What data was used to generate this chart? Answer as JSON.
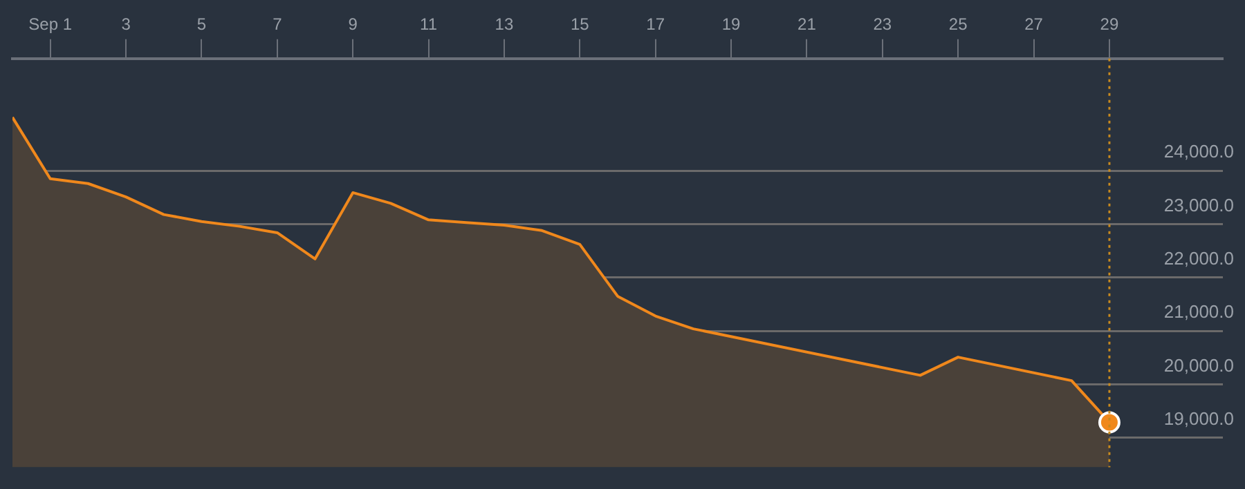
{
  "chart_data": {
    "type": "area",
    "x": [
      "--08-31",
      "--09-01",
      "--09-02",
      "--09-03",
      "--09-04",
      "--09-05",
      "--09-06",
      "--09-07",
      "--09-08",
      "--09-09",
      "--09-10",
      "--09-11",
      "--09-12",
      "--09-13",
      "--09-14",
      "--09-15",
      "--09-16",
      "--09-17",
      "--09-18",
      "--09-24",
      "--09-25",
      "--09-28",
      "--09-29"
    ],
    "series": [
      {
        "color": "#f0881c",
        "values": [
          25000,
          23850,
          23760,
          23510,
          23180,
          23050,
          22960,
          22840,
          22350,
          23590,
          23390,
          23080,
          23030,
          22980,
          22880,
          22620,
          21650,
          21280,
          21040,
          20170,
          20510,
          20070,
          19290
        ]
      },
      {
        "type": "scatter",
        "color": "#f0881c",
        "x": [
          "--09-29"
        ],
        "values": [
          19290
        ]
      }
    ],
    "xlim": [
      "--08-31",
      "--10-02"
    ],
    "xticks": [
      {
        "value": "--09-01",
        "label": "Sep 1"
      },
      {
        "value": "--09-03",
        "label": "3"
      },
      {
        "value": "--09-05",
        "label": "5"
      },
      {
        "value": "--09-07",
        "label": "7"
      },
      {
        "value": "--09-09",
        "label": "9"
      },
      {
        "value": "--09-11",
        "label": "11"
      },
      {
        "value": "--09-13",
        "label": "13"
      },
      {
        "value": "--09-15",
        "label": "15"
      },
      {
        "value": "--09-17",
        "label": "17"
      },
      {
        "value": "--09-19",
        "label": "19"
      },
      {
        "value": "--09-21",
        "label": "21"
      },
      {
        "value": "--09-23",
        "label": "23"
      },
      {
        "value": "--09-25",
        "label": "25"
      },
      {
        "value": "--09-27",
        "label": "27"
      },
      {
        "value": "--09-29",
        "label": "29"
      }
    ],
    "ylim": [
      18450,
      26100
    ],
    "yticks": [
      {
        "value": 19000,
        "label": "19,000.0"
      },
      {
        "value": 20000,
        "label": "20,000.0"
      },
      {
        "value": 21000,
        "label": "21,000.0"
      },
      {
        "value": 22000,
        "label": "22,000.0"
      },
      {
        "value": 23000,
        "label": "23,000.0"
      },
      {
        "value": 24000,
        "label": "24,000.0"
      }
    ],
    "ref_lines": [
      {
        "axis": "x",
        "value": "--09-29",
        "color": "#c98a1e",
        "line_style": "dotted"
      }
    ],
    "grid": "y"
  }
}
